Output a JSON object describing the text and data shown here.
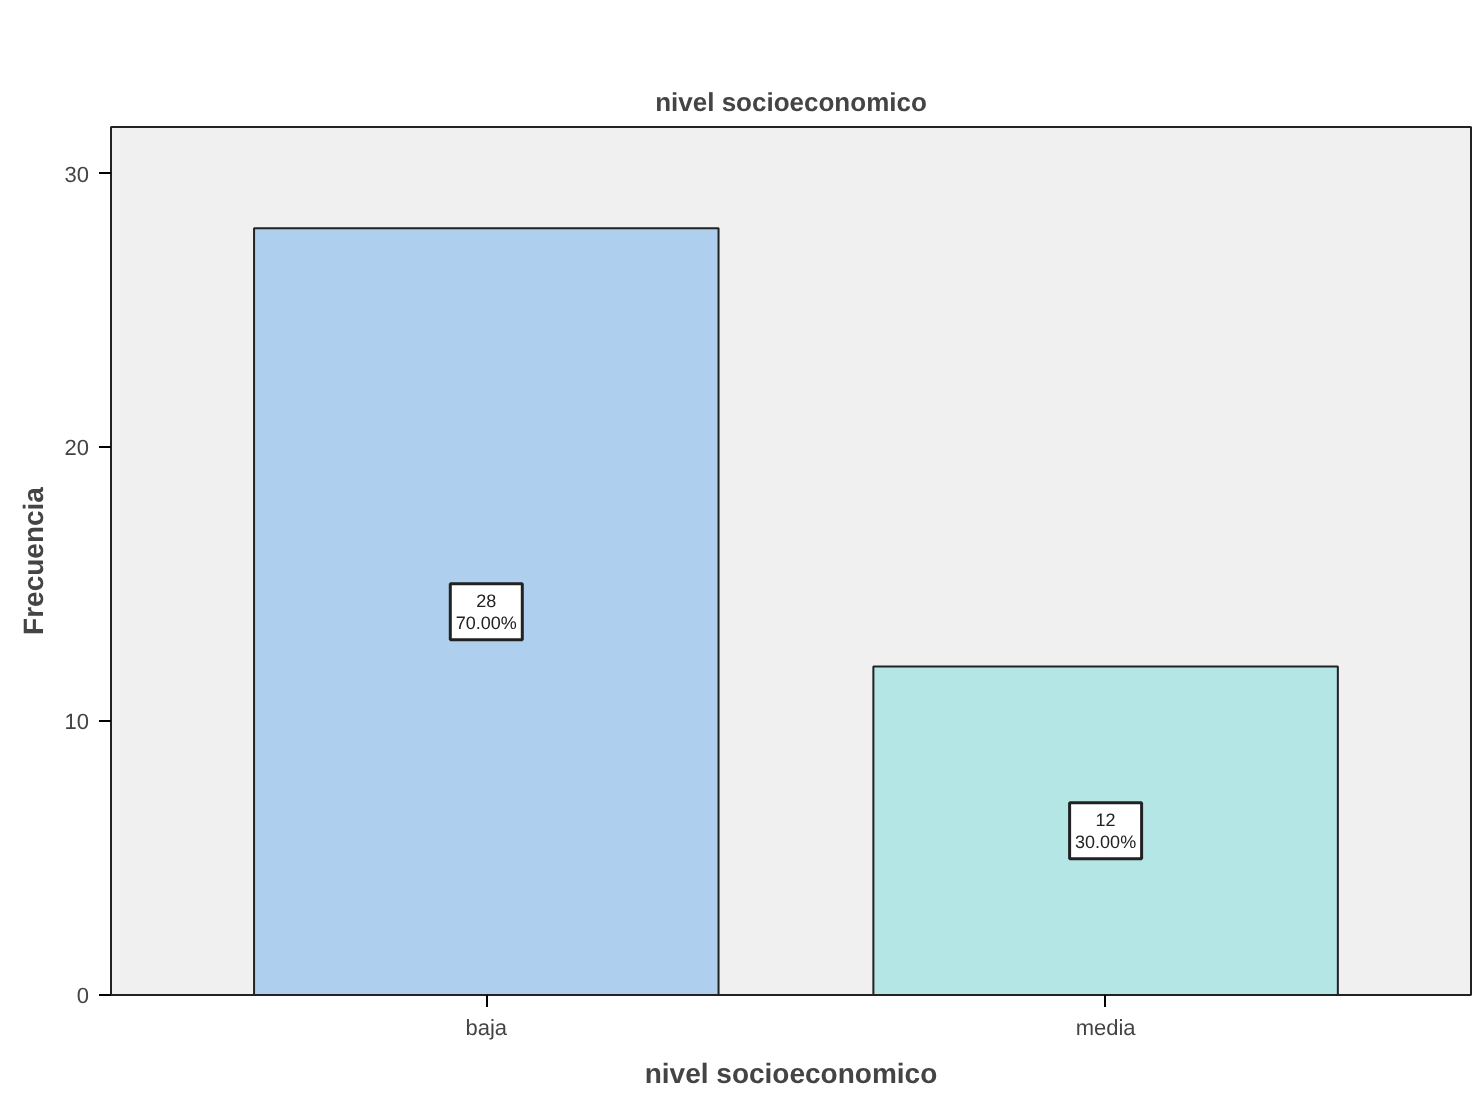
{
  "chart_data": {
    "type": "bar",
    "title": "nivel socioeconomico",
    "xlabel": "nivel socioeconomico",
    "ylabel": "Frecuencia",
    "categories": [
      "baja",
      "media"
    ],
    "values": [
      28,
      12
    ],
    "colors": [
      "#aecfee",
      "#b4e6e6"
    ],
    "value_labels": [
      "28\n70.00%",
      "12\n30.00%"
    ],
    "ylim": [
      0,
      31.7
    ],
    "yticks": [
      0,
      10,
      20,
      30
    ],
    "grid": false
  }
}
